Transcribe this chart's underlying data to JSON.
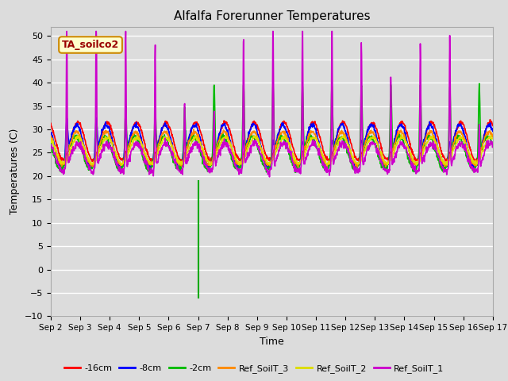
{
  "title": "Alfalfa Forerunner Temperatures",
  "xlabel": "Time",
  "ylabel": "Temperatures (C)",
  "ylim": [
    -10,
    52
  ],
  "yticks": [
    -10,
    -5,
    0,
    5,
    10,
    15,
    20,
    25,
    30,
    35,
    40,
    45,
    50
  ],
  "background_color": "#dcdcdc",
  "plot_bg_color": "#dcdcdc",
  "grid_color": "#ffffff",
  "annotation_label": "TA_soilco2",
  "vline_x": 5.0,
  "series": [
    {
      "label": "-16cm",
      "color": "#ff0000"
    },
    {
      "label": "-8cm",
      "color": "#0000ff"
    },
    {
      "label": "-2cm",
      "color": "#00bb00"
    },
    {
      "label": "Ref_SoilT_3",
      "color": "#ff8800"
    },
    {
      "label": "Ref_SoilT_2",
      "color": "#dddd00"
    },
    {
      "label": "Ref_SoilT_1",
      "color": "#cc00cc"
    }
  ],
  "x_tick_labels": [
    "Sep 2",
    "Sep 3",
    "Sep 4",
    "Sep 5",
    "Sep 6",
    "Sep 7",
    "Sep 8",
    "Sep 9",
    "Sep 10",
    "Sep 11",
    "Sep 12",
    "Sep 13",
    "Sep 14",
    "Sep 15",
    "Sep 16",
    "Sep 17"
  ],
  "x_tick_positions": [
    0,
    1,
    2,
    3,
    4,
    5,
    6,
    7,
    8,
    9,
    10,
    11,
    12,
    13,
    14,
    15
  ],
  "figsize": [
    6.4,
    4.8
  ],
  "dpi": 100
}
